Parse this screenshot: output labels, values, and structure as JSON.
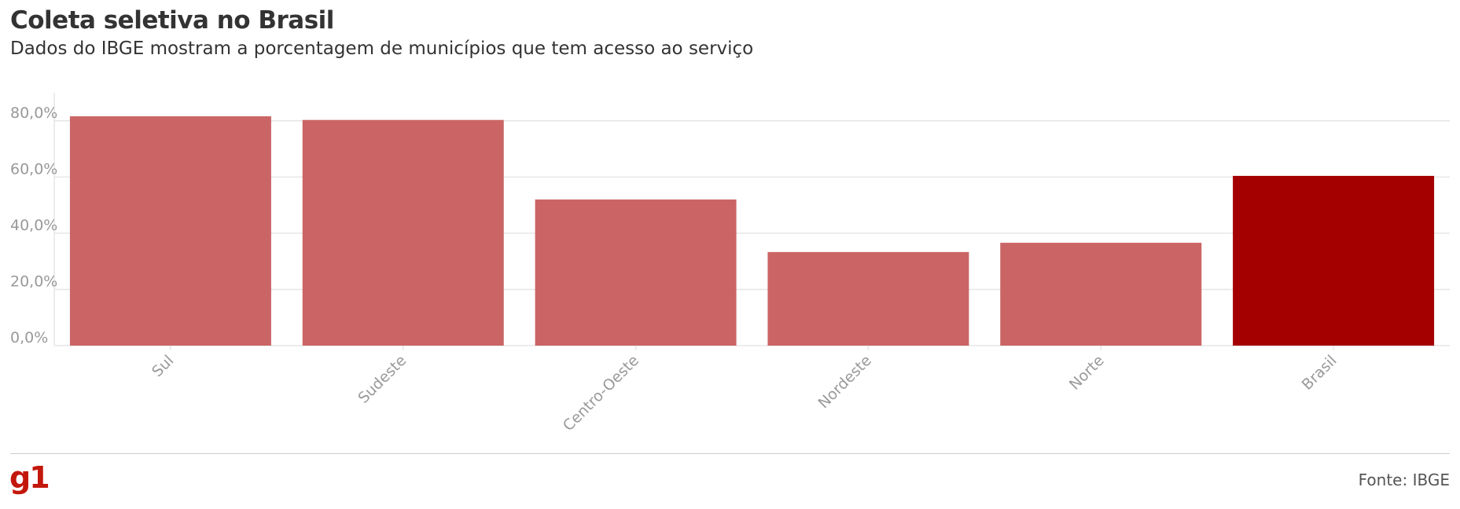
{
  "title": "Coleta seletiva no Brasil",
  "subtitle": "Dados do IBGE mostram a porcentagem de municípios que tem acesso ao serviço",
  "logo": "g1",
  "source": "Fonte: IBGE",
  "colors": {
    "bar": "#cb6565",
    "highlight": "#a50000",
    "grid": "#e6e6e6",
    "tick_text": "#999999"
  },
  "chart_data": {
    "type": "bar",
    "categories": [
      "Sul",
      "Sudeste",
      "Centro-Oeste",
      "Nordeste",
      "Norte",
      "Brasil"
    ],
    "values": [
      81.6,
      80.3,
      52.0,
      33.3,
      36.6,
      60.4
    ],
    "highlight_category": "Brasil",
    "y_ticks": [
      "0,0%",
      "20,0%",
      "40,0%",
      "60,0%",
      "80,0%"
    ],
    "y_tick_values": [
      0,
      20,
      40,
      60,
      80
    ],
    "ylim": [
      0,
      90
    ],
    "grid": true
  }
}
